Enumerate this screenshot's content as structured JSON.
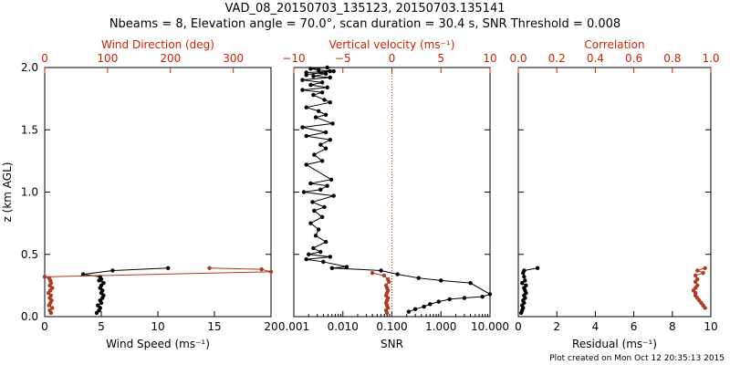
{
  "title_line1": "VAD_08_20150703_135123, 20150703.135141",
  "title_line2": "Nbeams = 8, Elevation angle = 70.0°, scan duration = 30.4 s, SNR Threshold = 0.008",
  "footer": "Plot created on Mon Oct 12 20:35:13 2015",
  "colors": {
    "axis": "#000000",
    "accent": "#cc2200",
    "series_black": "#000000",
    "series_red": "#b03a24"
  },
  "chart_data": [
    {
      "type": "line",
      "panel": "wind",
      "ylabel": "z (km AGL)",
      "ylim": [
        0.0,
        2.0
      ],
      "yticks": [
        0.0,
        0.5,
        1.0,
        1.5,
        2.0
      ],
      "ytick_labels": [
        "0.0",
        "0.5",
        "1.0",
        "1.5",
        "2.0"
      ],
      "bottom_axis": {
        "label": "Wind Speed (ms⁻¹)",
        "range": [
          0,
          20
        ],
        "ticks": [
          0,
          5,
          10,
          15,
          20
        ],
        "tick_labels": [
          "0",
          "5",
          "10",
          "15",
          "20"
        ]
      },
      "top_axis": {
        "label": "Wind Direction (deg)",
        "range": [
          0,
          360
        ],
        "ticks": [
          0,
          100,
          200,
          300
        ],
        "tick_labels": [
          "0",
          "100",
          "200",
          "300"
        ]
      },
      "series": [
        {
          "name": "Wind Speed",
          "axis": "bottom",
          "x": [
            4.6,
            4.8,
            4.9,
            4.7,
            5.0,
            4.9,
            5.1,
            5.2,
            5.0,
            5.1,
            4.9,
            5.0,
            5.2,
            4.8,
            5.0,
            4.9,
            3.4,
            6.0,
            10.9
          ],
          "y": [
            0.03,
            0.05,
            0.07,
            0.09,
            0.11,
            0.13,
            0.15,
            0.17,
            0.19,
            0.21,
            0.23,
            0.25,
            0.27,
            0.29,
            0.3,
            0.32,
            0.34,
            0.37,
            0.39
          ]
        },
        {
          "name": "Wind Direction",
          "axis": "top",
          "x": [
            10,
            8,
            12,
            7,
            9,
            11,
            8,
            10,
            6,
            9,
            12,
            8,
            10,
            9,
            7,
            0,
            360,
            345,
            262
          ],
          "y": [
            0.03,
            0.05,
            0.07,
            0.09,
            0.11,
            0.13,
            0.15,
            0.17,
            0.19,
            0.21,
            0.23,
            0.25,
            0.27,
            0.29,
            0.31,
            0.32,
            0.36,
            0.38,
            0.39
          ]
        }
      ]
    },
    {
      "type": "line",
      "panel": "vertical_velocity_snr",
      "ylim": [
        0.0,
        2.0
      ],
      "bottom_axis": {
        "label": "SNR",
        "scale": "log",
        "range": [
          0.001,
          10.0
        ],
        "ticks": [
          0.001,
          0.01,
          0.1,
          1.0,
          10.0
        ],
        "tick_labels": [
          "0.001",
          "0.010",
          "0.100",
          "1.000",
          "10.000"
        ]
      },
      "top_axis": {
        "label": "Vertical velocity (ms⁻¹)",
        "range": [
          -10,
          10
        ],
        "ticks": [
          -10,
          -5,
          0,
          5,
          10
        ],
        "tick_labels": [
          "−10",
          "−5",
          "0",
          "5",
          "10"
        ]
      },
      "zero_line_vertical_velocity": 0,
      "series": [
        {
          "name": "SNR",
          "axis": "bottom",
          "x": [
            0.22,
            0.3,
            0.45,
            0.6,
            0.9,
            1.5,
            3.0,
            7.0,
            12.0,
            4.0,
            1.0,
            0.35,
            0.13,
            0.06,
            0.006,
            0.012,
            0.004,
            0.0018,
            0.0055,
            0.002,
            0.0035,
            0.0025,
            0.0045,
            0.0028,
            0.0032,
            0.0022,
            0.0038,
            0.0026,
            0.0042,
            0.0024,
            0.0065,
            0.0016,
            0.0035,
            0.0048,
            0.0022,
            0.0058,
            0.0018,
            0.0038,
            0.0026,
            0.0045,
            0.0035,
            0.0055,
            0.0018,
            0.0045,
            0.0015,
            0.0062,
            0.0028,
            0.0045,
            0.0032,
            0.0018,
            0.0055,
            0.0042,
            0.0025,
            0.0038,
            0.0015,
            0.0048,
            0.0022,
            0.0038,
            0.0015,
            0.0055,
            0.0025,
            0.0045,
            0.0018,
            0.0065,
            0.0032,
            0.0022,
            0.0048,
            0.0055,
            0.0018
          ],
          "y": [
            0.04,
            0.06,
            0.08,
            0.1,
            0.12,
            0.14,
            0.15,
            0.16,
            0.18,
            0.27,
            0.29,
            0.31,
            0.34,
            0.37,
            0.39,
            0.4,
            0.44,
            0.46,
            0.48,
            0.5,
            0.52,
            0.55,
            0.6,
            0.65,
            0.7,
            0.75,
            0.8,
            0.85,
            0.88,
            0.92,
            0.97,
            1.0,
            1.02,
            1.05,
            1.07,
            1.1,
            1.22,
            1.25,
            1.3,
            1.35,
            1.38,
            1.42,
            1.45,
            1.48,
            1.52,
            1.55,
            1.6,
            1.62,
            1.65,
            1.68,
            1.72,
            1.74,
            1.78,
            1.8,
            1.82,
            1.84,
            1.86,
            1.88,
            1.9,
            1.92,
            1.93,
            1.95,
            1.96,
            1.97,
            1.98,
            1.99,
            2.0,
            1.97,
            1.94
          ]
        },
        {
          "name": "Vertical velocity",
          "axis": "top",
          "x": [
            -0.5,
            -0.6,
            -0.4,
            -0.5,
            -0.6,
            -0.5,
            -0.4,
            -0.6,
            -0.5,
            -0.4,
            -0.5,
            -0.6,
            -0.3,
            -0.4,
            -0.8,
            -2.0
          ],
          "y": [
            0.03,
            0.05,
            0.07,
            0.09,
            0.11,
            0.13,
            0.15,
            0.17,
            0.19,
            0.21,
            0.23,
            0.25,
            0.28,
            0.3,
            0.33,
            0.35
          ]
        }
      ]
    },
    {
      "type": "line",
      "panel": "residual_correlation",
      "ylim": [
        0.0,
        2.0
      ],
      "bottom_axis": {
        "label": "Residual (ms⁻¹)",
        "range": [
          0,
          10
        ],
        "ticks": [
          0,
          2,
          4,
          6,
          8,
          10
        ],
        "tick_labels": [
          "0",
          "2",
          "4",
          "6",
          "8",
          "10"
        ]
      },
      "top_axis": {
        "label": "Correlation",
        "range": [
          0.0,
          1.0
        ],
        "ticks": [
          0.0,
          0.2,
          0.4,
          0.6,
          0.8,
          1.0
        ],
        "tick_labels": [
          "0.0",
          "0.2",
          "0.4",
          "0.6",
          "0.8",
          "1.0"
        ]
      },
      "series": [
        {
          "name": "Residual",
          "axis": "bottom",
          "x": [
            0.15,
            0.2,
            0.25,
            0.2,
            0.3,
            0.25,
            0.35,
            0.3,
            0.4,
            0.35,
            0.3,
            0.4,
            0.2,
            0.35,
            0.3,
            0.25,
            0.3,
            1.0
          ],
          "y": [
            0.03,
            0.05,
            0.07,
            0.09,
            0.11,
            0.13,
            0.15,
            0.17,
            0.19,
            0.21,
            0.23,
            0.25,
            0.27,
            0.29,
            0.32,
            0.35,
            0.37,
            0.39
          ]
        },
        {
          "name": "Correlation",
          "axis": "top",
          "x": [
            0.97,
            0.96,
            0.95,
            0.94,
            0.93,
            0.92,
            0.92,
            0.91,
            0.92,
            0.93,
            0.92,
            0.93,
            0.92,
            0.96,
            0.93,
            0.97
          ],
          "y": [
            0.07,
            0.09,
            0.11,
            0.13,
            0.15,
            0.17,
            0.19,
            0.21,
            0.23,
            0.25,
            0.28,
            0.3,
            0.33,
            0.35,
            0.37,
            0.39
          ]
        }
      ]
    }
  ]
}
